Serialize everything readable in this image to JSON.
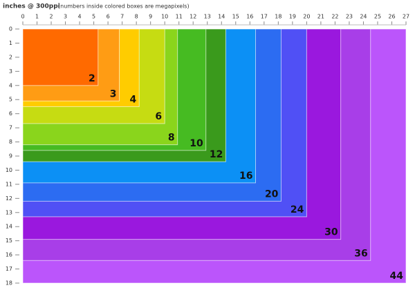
{
  "chart_data": {
    "type": "nested-rect",
    "title": "inches @ 300ppi",
    "subtitle": "(numbers inside colored boxes are megapixels)",
    "categories": [
      "2",
      "3",
      "4",
      "6",
      "8",
      "10",
      "12",
      "16",
      "20",
      "24",
      "30",
      "36",
      "44"
    ],
    "widths": [
      5.3,
      6.8,
      8.2,
      10,
      10.9,
      12.9,
      14.3,
      16.4,
      18.2,
      20,
      22.4,
      24.5,
      27
    ],
    "heights": [
      4,
      5.1,
      5.5,
      6.7,
      8.2,
      8.6,
      9.4,
      10.9,
      12.2,
      13.3,
      14.9,
      16.4,
      18
    ],
    "colors": [
      "#ff6a00",
      "#ff9c14",
      "#ffcc00",
      "#c6dc12",
      "#8ad51c",
      "#46bb22",
      "#3a9a1c",
      "#0c90f5",
      "#2c6cf2",
      "#5050f5",
      "#9a18de",
      "#a83ee8",
      "#bb55fb"
    ],
    "xlim": [
      0,
      27
    ],
    "ylim": [
      0,
      18
    ],
    "xticks": [
      0,
      1,
      2,
      3,
      4,
      5,
      6,
      7,
      8,
      9,
      10,
      11,
      12,
      13,
      14,
      15,
      16,
      17,
      18,
      19,
      20,
      21,
      22,
      23,
      24,
      25,
      26,
      27
    ],
    "yticks": [
      0,
      1,
      2,
      3,
      4,
      5,
      6,
      7,
      8,
      9,
      10,
      11,
      12,
      13,
      14,
      15,
      16,
      17,
      18
    ]
  }
}
